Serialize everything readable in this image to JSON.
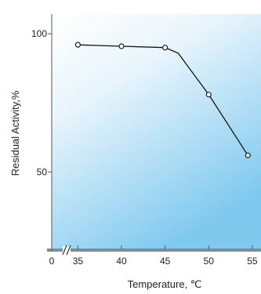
{
  "chart_data": {
    "type": "line",
    "xlabel": "Temperature, ℃",
    "ylabel": "Residual Activity,%",
    "x_ticks": [
      "0",
      "35",
      "40",
      "45",
      "50",
      "55"
    ],
    "y_ticks": [
      "50",
      "100"
    ],
    "xlim": [
      32,
      56
    ],
    "ylim": [
      22,
      104
    ],
    "axis_break": true,
    "series": [
      {
        "points": [
          {
            "x": 35,
            "y": 96
          },
          {
            "x": 40,
            "y": 95.5
          },
          {
            "x": 45,
            "y": 95
          },
          {
            "x": 46.5,
            "y": 93
          },
          {
            "x": 50,
            "y": 78
          },
          {
            "x": 54.5,
            "y": 56
          }
        ],
        "markers": [
          true,
          true,
          true,
          false,
          true,
          true
        ]
      }
    ],
    "colors": {
      "background_top": "#ffffff",
      "background_bottom": "#7fc9ef",
      "axis": "#555555",
      "line": "#111111"
    }
  }
}
